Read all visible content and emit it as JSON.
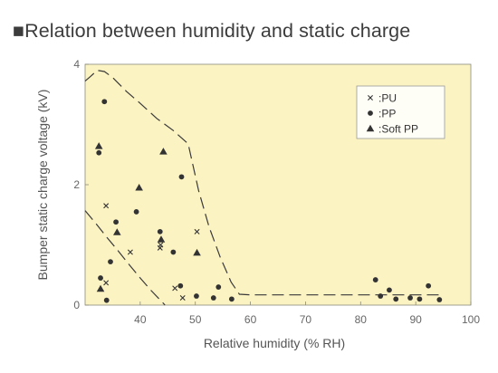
{
  "chart_data": {
    "type": "scatter",
    "title": "■Relation between humidity and static charge",
    "xlabel": "Relative humidity (% RH)",
    "ylabel": "Bumper static charge voltage (kV)",
    "xlim": [
      30,
      100
    ],
    "ylim": [
      0,
      4
    ],
    "xticks": [
      40,
      50,
      60,
      70,
      80,
      90,
      100
    ],
    "yticks": [
      0,
      2,
      4
    ],
    "grid": false,
    "legend_position": "top-right",
    "colors": {
      "plot_bg": "#fcf3c3",
      "frame": "#8a8a7a",
      "marker": "#333333",
      "dashed": "#3a3a3a"
    },
    "series": [
      {
        "name": ":PU",
        "marker": "cross",
        "points": [
          [
            33.8,
            1.65
          ],
          [
            38.2,
            0.88
          ],
          [
            33.8,
            0.37
          ],
          [
            43.7,
            1.0
          ],
          [
            43.6,
            0.95
          ],
          [
            46.3,
            0.28
          ],
          [
            47.7,
            0.12
          ],
          [
            50.3,
            1.22
          ]
        ]
      },
      {
        "name": ":PP",
        "marker": "circle",
        "points": [
          [
            33.5,
            3.38
          ],
          [
            32.5,
            2.53
          ],
          [
            35.6,
            1.38
          ],
          [
            39.3,
            1.55
          ],
          [
            43.6,
            1.22
          ],
          [
            47.5,
            2.13
          ],
          [
            47.3,
            0.32
          ],
          [
            50.2,
            0.15
          ],
          [
            53.3,
            0.12
          ],
          [
            54.2,
            0.3
          ],
          [
            56.6,
            0.1
          ],
          [
            32.8,
            0.45
          ],
          [
            34.6,
            0.72
          ],
          [
            33.9,
            0.08
          ],
          [
            46.0,
            0.88
          ],
          [
            82.7,
            0.42
          ],
          [
            83.6,
            0.15
          ],
          [
            85.2,
            0.25
          ],
          [
            86.4,
            0.1
          ],
          [
            89.0,
            0.12
          ],
          [
            90.7,
            0.1
          ],
          [
            92.3,
            0.32
          ],
          [
            94.3,
            0.09
          ]
        ]
      },
      {
        "name": ":Soft PP",
        "marker": "triangle",
        "points": [
          [
            32.5,
            2.64
          ],
          [
            35.8,
            1.21
          ],
          [
            39.8,
            1.95
          ],
          [
            44.2,
            2.55
          ],
          [
            43.8,
            1.09
          ],
          [
            50.3,
            0.87
          ],
          [
            32.8,
            0.27
          ]
        ]
      }
    ],
    "dashed_envelopes": [
      [
        [
          30.0,
          3.72
        ],
        [
          31.0,
          3.8
        ],
        [
          32.2,
          3.9
        ],
        [
          33.5,
          3.88
        ],
        [
          35.0,
          3.78
        ],
        [
          37.5,
          3.55
        ],
        [
          40.0,
          3.35
        ],
        [
          43.0,
          3.1
        ],
        [
          46.0,
          2.9
        ],
        [
          48.7,
          2.68
        ],
        [
          50.6,
          1.9
        ],
        [
          52.5,
          1.3
        ],
        [
          54.5,
          0.8
        ],
        [
          56.5,
          0.38
        ],
        [
          58.0,
          0.18
        ],
        [
          60.0,
          0.17
        ],
        [
          70.0,
          0.17
        ],
        [
          80.0,
          0.17
        ],
        [
          95.0,
          0.17
        ]
      ],
      [
        [
          30.0,
          1.57
        ],
        [
          32.0,
          1.35
        ],
        [
          34.0,
          1.12
        ],
        [
          36.0,
          0.9
        ],
        [
          38.0,
          0.67
        ],
        [
          40.0,
          0.45
        ],
        [
          42.0,
          0.24
        ],
        [
          44.0,
          0.05
        ],
        [
          44.5,
          0.0
        ]
      ]
    ]
  }
}
